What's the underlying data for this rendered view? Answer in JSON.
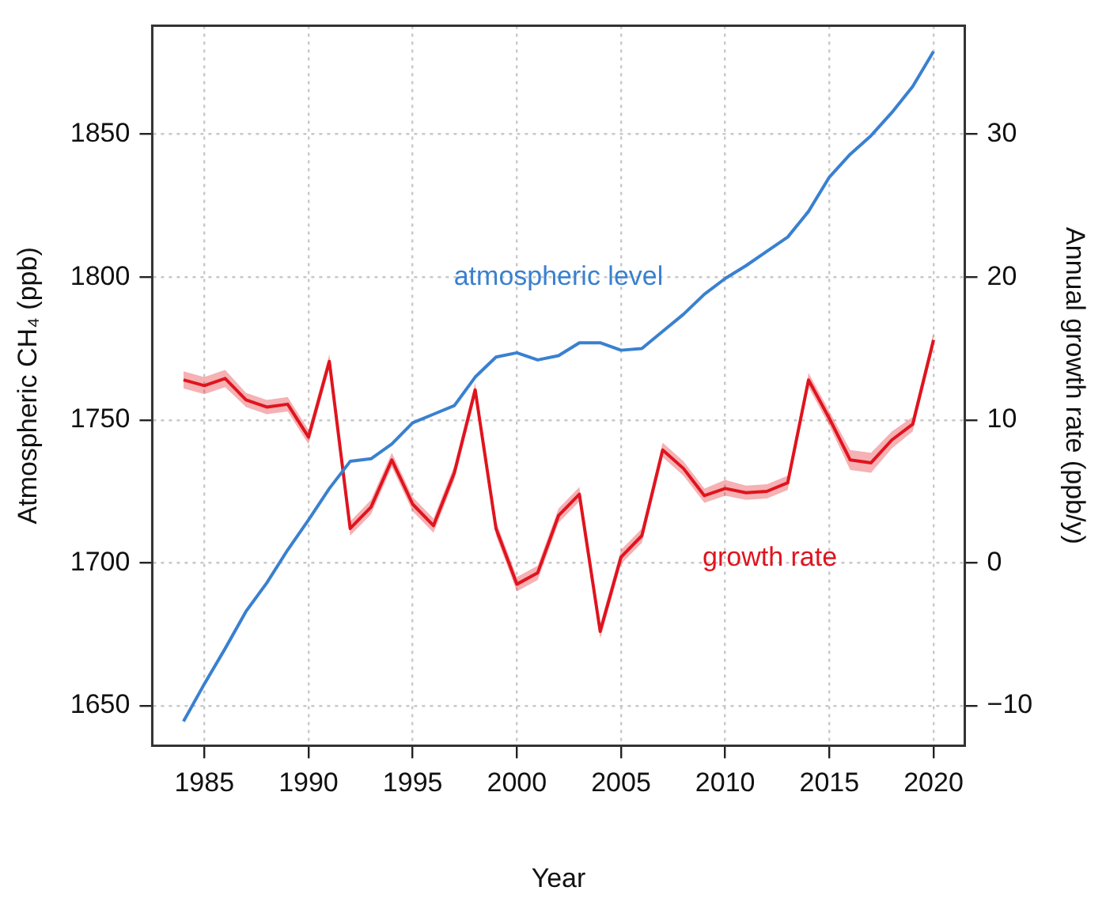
{
  "chart_data": {
    "type": "line",
    "xlabel": "Year",
    "ylabel": "Atmospheric CH₄ (ppb)",
    "y2label": "Annual growth rate (ppb/y)",
    "x": [
      1984,
      1985,
      1986,
      1987,
      1988,
      1989,
      1990,
      1991,
      1992,
      1993,
      1994,
      1995,
      1996,
      1997,
      1998,
      1999,
      2000,
      2001,
      2002,
      2003,
      2004,
      2005,
      2006,
      2007,
      2008,
      2009,
      2010,
      2011,
      2012,
      2013,
      2014,
      2015,
      2016,
      2017,
      2018,
      2019,
      2020
    ],
    "series": [
      {
        "name": "atmospheric level",
        "color": "#3a80d0",
        "values": [
          1644.5,
          1657.6,
          1670,
          1683,
          1693,
          1704.5,
          1715,
          1726,
          1735.5,
          1736.4,
          1741.6,
          1749,
          1752,
          1755,
          1765,
          1772,
          1773.5,
          1771,
          1772.5,
          1777,
          1777,
          1774.4,
          1775,
          1781,
          1787,
          1794,
          1799.5,
          1804,
          1809,
          1814,
          1823,
          1835,
          1843,
          1849.5,
          1857.6,
          1866.7,
          1879
        ]
      },
      {
        "name": "growth rate",
        "color": "#e0141e",
        "axis": "y2",
        "values": [
          12.8,
          12.4,
          12.9,
          11.4,
          10.9,
          11.1,
          8.8,
          14.1,
          2.4,
          3.9,
          7.2,
          4.1,
          2.6,
          6.3,
          12.1,
          2.4,
          -1.5,
          -0.7,
          3.3,
          4.8,
          -4.8,
          0.4,
          1.9,
          7.9,
          6.6,
          4.7,
          5.2,
          4.9,
          5.0,
          5.6,
          12.8,
          10.1,
          7.2,
          7.0,
          8.6,
          9.7,
          15.6
        ],
        "lower": [
          12.2,
          11.8,
          12.3,
          10.9,
          10.4,
          10.6,
          8.3,
          13.6,
          1.9,
          3.4,
          6.7,
          3.6,
          2.1,
          5.8,
          11.6,
          1.9,
          -2.0,
          -1.2,
          2.8,
          4.3,
          -5.3,
          -0.1,
          1.4,
          7.4,
          6.1,
          4.2,
          4.7,
          4.4,
          4.5,
          5.1,
          12.3,
          9.6,
          6.5,
          6.3,
          8.0,
          9.2,
          15.1
        ],
        "upper": [
          13.4,
          13.0,
          13.5,
          11.9,
          11.4,
          11.6,
          9.3,
          14.6,
          2.9,
          4.4,
          7.7,
          4.6,
          3.1,
          6.8,
          12.6,
          2.9,
          -1.0,
          -0.2,
          3.8,
          5.3,
          -4.3,
          0.9,
          2.4,
          8.4,
          7.1,
          5.2,
          5.8,
          5.4,
          5.5,
          6.1,
          13.3,
          10.6,
          7.9,
          7.7,
          9.2,
          10.2,
          16.1
        ]
      }
    ],
    "xlim": [
      1982.5,
      2021.5
    ],
    "xticks": [
      1985,
      1990,
      1995,
      2000,
      2005,
      2010,
      2015,
      2020
    ],
    "ylim": [
      1636,
      1888
    ],
    "yticks": [
      1650,
      1700,
      1750,
      1800,
      1850
    ],
    "y2lim": [
      -12.8,
      37.6
    ],
    "y2ticks": [
      {
        "value": -10,
        "label": "−10"
      },
      0,
      10,
      20,
      30
    ],
    "grid": true,
    "legend": false,
    "marker": "none",
    "line_style": "solid"
  }
}
